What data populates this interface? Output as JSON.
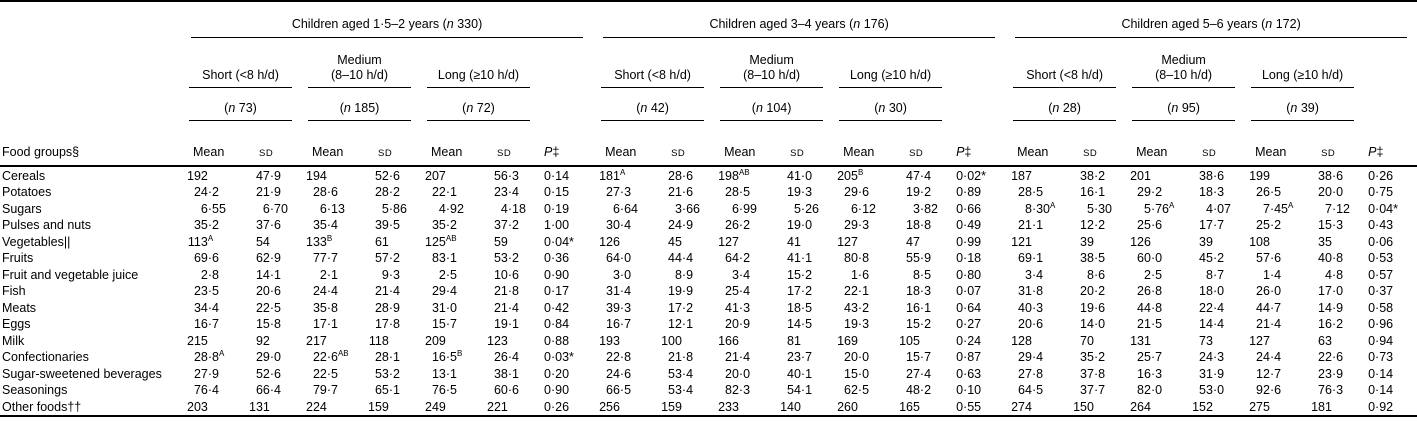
{
  "page": {
    "background": "#ffffff",
    "text_color": "#000000"
  },
  "table": {
    "stub_header": "Food groups§",
    "col_headers": {
      "mean": "Mean",
      "sd": "SD",
      "p": "P‡"
    },
    "groups": [
      {
        "title": "Children aged 1·5–2 years (n 330)",
        "subgroups": [
          {
            "label": "Short (<8 h/d)",
            "n": "(n 73)"
          },
          {
            "label": "Medium\n(8–10 h/d)",
            "n": "(n 185)"
          },
          {
            "label": "Long (≥10 h/d)",
            "n": "(n 72)"
          }
        ]
      },
      {
        "title": "Children aged 3–4 years (n 176)",
        "subgroups": [
          {
            "label": "Short (<8 h/d)",
            "n": "(n 42)"
          },
          {
            "label": "Medium\n(8–10 h/d)",
            "n": "(n 104)"
          },
          {
            "label": "Long (≥10 h/d)",
            "n": "(n 30)"
          }
        ]
      },
      {
        "title": "Children aged 5–6 years (n 172)",
        "subgroups": [
          {
            "label": "Short (<8 h/d)",
            "n": "(n 28)"
          },
          {
            "label": "Medium\n(8–10 h/d)",
            "n": "(n 95)"
          },
          {
            "label": "Long (≥10 h/d)",
            "n": "(n 39)"
          }
        ]
      }
    ],
    "rows": [
      {
        "label": "Cereals",
        "values": [
          "192",
          "47·9",
          "194",
          "52·6",
          "207",
          "56·3",
          "0·14",
          "181^A",
          "28·6",
          "198^AB",
          "41·0",
          "205^B",
          "47·4",
          "0·02*",
          "187",
          "38·2",
          "201",
          "38·6",
          "199",
          "38·6",
          "0·26"
        ]
      },
      {
        "label": "Potatoes",
        "values": [
          "24·2",
          "21·9",
          "28·6",
          "28·2",
          "22·1",
          "23·4",
          "0·15",
          "27·3",
          "21·6",
          "28·5",
          "19·3",
          "29·6",
          "19·2",
          "0·89",
          "28·5",
          "16·1",
          "29·2",
          "18·3",
          "26·5",
          "20·0",
          "0·75"
        ]
      },
      {
        "label": "Sugars",
        "values": [
          "6·55",
          "6·70",
          "6·13",
          "5·86",
          "4·92",
          "4·18",
          "0·19",
          "6·64",
          "3·66",
          "6·99",
          "5·26",
          "6·12",
          "3·82",
          "0·66",
          "8·30^A",
          "5·30",
          "5·76^A",
          "4·07",
          "7·45^A",
          "7·12",
          "0·04*"
        ]
      },
      {
        "label": "Pulses and nuts",
        "values": [
          "35·2",
          "37·6",
          "35·4",
          "39·5",
          "35·2",
          "37·2",
          "1·00",
          "30·4",
          "24·9",
          "26·2",
          "19·0",
          "29·3",
          "18·8",
          "0·49",
          "21·1",
          "12·2",
          "25·6",
          "17·7",
          "25·2",
          "15·3",
          "0·43"
        ]
      },
      {
        "label": "Vegetables||",
        "values": [
          "113^A",
          "54",
          "133^B",
          "61",
          "125^AB",
          "59",
          "0·04*",
          "126",
          "45",
          "127",
          "41",
          "127",
          "47",
          "0·99",
          "121",
          "39",
          "126",
          "39",
          "108",
          "35",
          "0·06"
        ]
      },
      {
        "label": "Fruits",
        "values": [
          "69·6",
          "62·9",
          "77·7",
          "57·2",
          "83·1",
          "53·2",
          "0·36",
          "64·0",
          "44·4",
          "64·2",
          "41·1",
          "80·8",
          "55·9",
          "0·18",
          "69·1",
          "38·5",
          "60·0",
          "45·2",
          "57·6",
          "40·8",
          "0·53"
        ]
      },
      {
        "label": "Fruit and vegetable juice",
        "values": [
          "2·8",
          "14·1",
          "2·1",
          "9·3",
          "2·5",
          "10·6",
          "0·90",
          "3·0",
          "8·9",
          "3·4",
          "15·2",
          "1·6",
          "8·5",
          "0·80",
          "3·4",
          "8·6",
          "2·5",
          "8·7",
          "1·4",
          "4·8",
          "0·57"
        ]
      },
      {
        "label": "Fish",
        "values": [
          "23·5",
          "20·6",
          "24·4",
          "21·4",
          "29·4",
          "21·8",
          "0·17",
          "31·4",
          "19·9",
          "25·4",
          "17·2",
          "22·1",
          "18·3",
          "0·07",
          "31·8",
          "20·2",
          "26·8",
          "18·0",
          "26·0",
          "17·0",
          "0·37"
        ]
      },
      {
        "label": "Meats",
        "values": [
          "34·4",
          "22·5",
          "35·8",
          "28·9",
          "31·0",
          "21·4",
          "0·42",
          "39·3",
          "17·2",
          "41·3",
          "18·5",
          "43·2",
          "16·1",
          "0·64",
          "40·3",
          "19·6",
          "44·8",
          "22·4",
          "44·7",
          "14·9",
          "0·58"
        ]
      },
      {
        "label": "Eggs",
        "values": [
          "16·7",
          "15·8",
          "17·1",
          "17·8",
          "15·7",
          "19·1",
          "0·84",
          "16·7",
          "12·1",
          "20·9",
          "14·5",
          "19·3",
          "15·2",
          "0·27",
          "20·6",
          "14·0",
          "21·5",
          "14·4",
          "21·4",
          "16·2",
          "0·96"
        ]
      },
      {
        "label": "Milk",
        "values": [
          "215",
          "92",
          "217",
          "118",
          "209",
          "123",
          "0·88",
          "193",
          "100",
          "166",
          "81",
          "169",
          "105",
          "0·24",
          "128",
          "70",
          "131",
          "73",
          "127",
          "63",
          "0·94"
        ]
      },
      {
        "label": "Confectionaries",
        "values": [
          "28·8^A",
          "29·0",
          "22·6^AB",
          "28·1",
          "16·5^B",
          "26·4",
          "0·03*",
          "22·8",
          "21·8",
          "21·4",
          "23·7",
          "20·0",
          "15·7",
          "0·87",
          "29·4",
          "35·2",
          "25·7",
          "24·3",
          "24·4",
          "22·6",
          "0·73"
        ]
      },
      {
        "label": "Sugar-sweetened beverages",
        "values": [
          "27·9",
          "52·6",
          "22·5",
          "53·2",
          "13·1",
          "38·1",
          "0·20",
          "24·6",
          "53·4",
          "20·0",
          "40·1",
          "15·0",
          "27·4",
          "0·63",
          "27·8",
          "37·8",
          "16·3",
          "31·9",
          "12·7",
          "23·9",
          "0·14"
        ]
      },
      {
        "label": "Seasonings",
        "values": [
          "76·4",
          "66·4",
          "79·7",
          "65·1",
          "76·5",
          "60·6",
          "0·90",
          "66·5",
          "53·4",
          "82·3",
          "54·1",
          "62·5",
          "48·2",
          "0·10",
          "64·5",
          "37·7",
          "82·0",
          "53·0",
          "92·6",
          "76·3",
          "0·14"
        ]
      },
      {
        "label": "Other foods††",
        "values": [
          "203",
          "131",
          "224",
          "159",
          "249",
          "221",
          "0·26",
          "256",
          "159",
          "233",
          "140",
          "260",
          "165",
          "0·55",
          "274",
          "150",
          "264",
          "152",
          "275",
          "181",
          "0·92"
        ]
      }
    ]
  }
}
